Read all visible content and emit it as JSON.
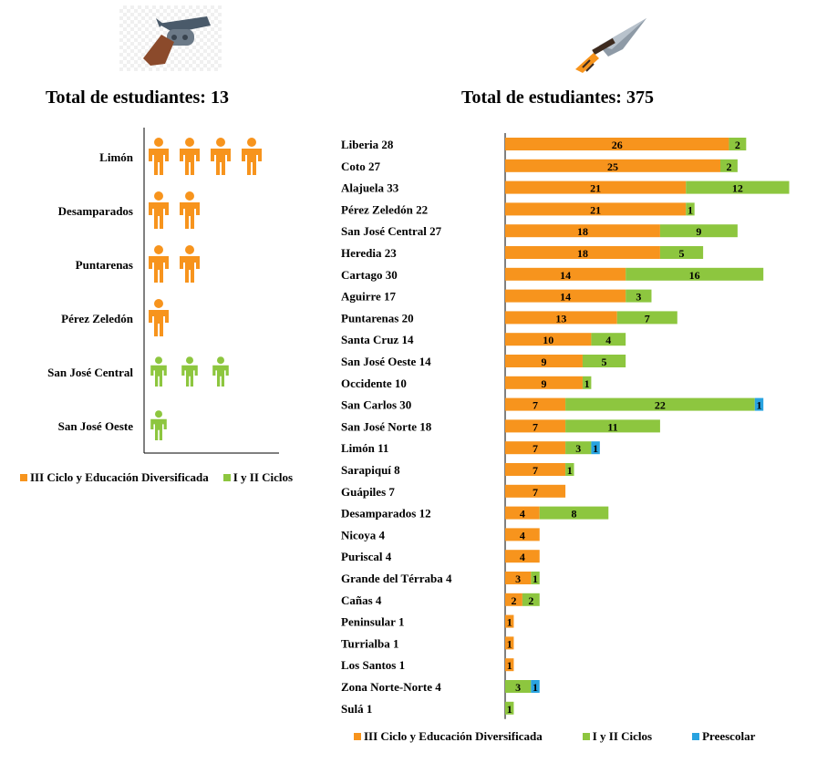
{
  "colors": {
    "orange": "#f7941d",
    "green": "#8dc63f",
    "blue": "#29a3e0"
  },
  "left_title": "Total de estudiantes: 13",
  "right_title": "Total de estudiantes: 375",
  "left_legend": [
    {
      "label": "III Ciclo y Educación Diversificada",
      "color": "#f7941d"
    },
    {
      "label": "I y II Ciclos",
      "color": "#8dc63f"
    }
  ],
  "right_legend": [
    {
      "label": "III Ciclo y Educación Diversificada",
      "color": "#f7941d"
    },
    {
      "label": "I y II Ciclos",
      "color": "#8dc63f"
    },
    {
      "label": "Preescolar",
      "color": "#29a3e0"
    }
  ],
  "icons": [
    "revolver-icon",
    "knife-icon",
    "person-icon"
  ],
  "chart_data": [
    {
      "type": "pictograph",
      "title": "Total de estudiantes: 13",
      "categories": [
        "Limón",
        "Desamparados",
        "Puntarenas",
        "Pérez Zeledón",
        "San José Central",
        "San José Oeste"
      ],
      "series": [
        {
          "name": "III Ciclo y Educación Diversificada",
          "values": [
            4,
            2,
            2,
            1,
            0,
            0
          ]
        },
        {
          "name": "I y II Ciclos",
          "values": [
            0,
            0,
            0,
            0,
            3,
            1
          ]
        }
      ]
    },
    {
      "type": "bar",
      "orientation": "horizontal",
      "stacked": true,
      "title": "Total de estudiantes: 375",
      "categories": [
        "Liberia  28",
        "Coto  27",
        "Alajuela  33",
        "Pérez Zeledón  22",
        "San José Central  27",
        "Heredia  23",
        "Cartago  30",
        "Aguirre  17",
        "Puntarenas  20",
        "Santa Cruz  14",
        "San José Oeste  14",
        "Occidente  10",
        "San Carlos  30",
        "San José Norte  18",
        "Limón  11",
        "Sarapiquí  8",
        "Guápiles  7",
        "Desamparados  12",
        "Nicoya  4",
        "Puriscal  4",
        "Grande del Térraba  4",
        "Cañas  4",
        "Peninsular  1",
        "Turrialba  1",
        "Los Santos  1",
        "Zona Norte-Norte  4",
        "Sulá  1"
      ],
      "series": [
        {
          "name": "III Ciclo y Educación Diversificada",
          "values": [
            26,
            25,
            21,
            21,
            18,
            18,
            14,
            14,
            13,
            10,
            9,
            9,
            7,
            7,
            7,
            7,
            7,
            4,
            4,
            4,
            3,
            2,
            1,
            1,
            1,
            0,
            0
          ]
        },
        {
          "name": "I y II Ciclos",
          "values": [
            2,
            2,
            12,
            1,
            9,
            5,
            16,
            3,
            7,
            4,
            5,
            1,
            22,
            11,
            3,
            1,
            0,
            8,
            0,
            0,
            1,
            2,
            0,
            0,
            0,
            3,
            1
          ]
        },
        {
          "name": "Preescolar",
          "values": [
            0,
            0,
            0,
            0,
            0,
            0,
            0,
            0,
            0,
            0,
            0,
            0,
            1,
            0,
            1,
            0,
            0,
            0,
            0,
            0,
            0,
            0,
            0,
            0,
            0,
            1,
            0
          ]
        }
      ],
      "legend": "bottom"
    }
  ]
}
